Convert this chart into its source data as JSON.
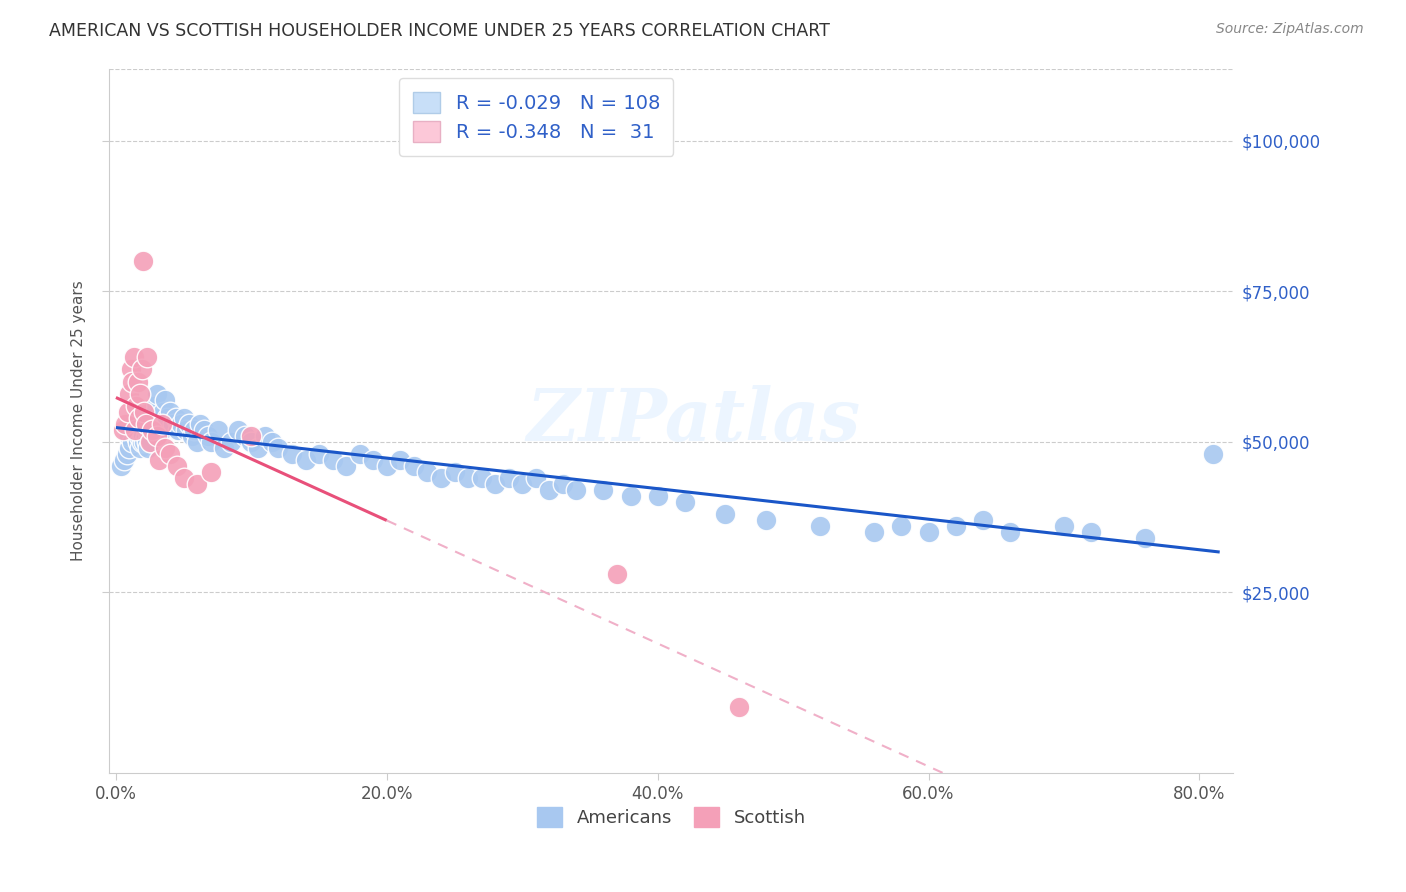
{
  "title": "AMERICAN VS SCOTTISH HOUSEHOLDER INCOME UNDER 25 YEARS CORRELATION CHART",
  "source": "Source: ZipAtlas.com",
  "ylabel": "Householder Income Under 25 years",
  "xlabel_ticks": [
    "0.0%",
    "",
    "",
    "",
    "",
    "20.0%",
    "",
    "",
    "",
    "",
    "40.0%",
    "",
    "",
    "",
    "",
    "60.0%",
    "",
    "",
    "",
    "",
    "80.0%"
  ],
  "xlabel_vals": [
    0.0,
    0.04,
    0.08,
    0.12,
    0.16,
    0.2,
    0.24,
    0.28,
    0.32,
    0.36,
    0.4,
    0.44,
    0.48,
    0.52,
    0.56,
    0.6,
    0.64,
    0.68,
    0.72,
    0.76,
    0.8
  ],
  "xlabel_shown": [
    "0.0%",
    "20.0%",
    "40.0%",
    "60.0%",
    "80.0%"
  ],
  "xlabel_shown_vals": [
    0.0,
    0.2,
    0.4,
    0.6,
    0.8
  ],
  "ylabel_ticks": [
    "$25,000",
    "$50,000",
    "$75,000",
    "$100,000"
  ],
  "ylabel_vals": [
    25000,
    50000,
    75000,
    100000
  ],
  "xlim": [
    -0.005,
    0.825
  ],
  "ylim": [
    -5000,
    112000
  ],
  "R_american": -0.029,
  "N_american": 108,
  "R_scottish": -0.348,
  "N_scottish": 31,
  "american_color": "#a8c8f0",
  "scottish_color": "#f4a0b8",
  "trend_american_color": "#1a56c8",
  "trend_scottish_color": "#e8507a",
  "trend_scottish_dashed_color": "#f0b0c8",
  "watermark": "ZIPatlas",
  "legend_box_color_american": "#c8dff8",
  "legend_box_color_scottish": "#fcc8d8",
  "legend_text_color": "#3060c8",
  "background_color": "#ffffff",
  "grid_color": "#cccccc",
  "spine_color": "#cccccc",
  "title_color": "#333333",
  "source_color": "#888888",
  "ylabel_color": "#555555",
  "tick_color": "#555555",
  "right_tick_color": "#3060c8",
  "americans_x": [
    0.004,
    0.006,
    0.008,
    0.01,
    0.01,
    0.012,
    0.013,
    0.014,
    0.015,
    0.015,
    0.016,
    0.016,
    0.017,
    0.017,
    0.018,
    0.018,
    0.019,
    0.019,
    0.02,
    0.02,
    0.021,
    0.021,
    0.022,
    0.022,
    0.022,
    0.023,
    0.023,
    0.024,
    0.024,
    0.025,
    0.025,
    0.026,
    0.026,
    0.027,
    0.028,
    0.028,
    0.03,
    0.03,
    0.032,
    0.033,
    0.034,
    0.035,
    0.036,
    0.038,
    0.04,
    0.042,
    0.044,
    0.046,
    0.048,
    0.05,
    0.052,
    0.054,
    0.056,
    0.058,
    0.06,
    0.062,
    0.065,
    0.068,
    0.07,
    0.075,
    0.08,
    0.085,
    0.09,
    0.095,
    0.1,
    0.105,
    0.11,
    0.115,
    0.12,
    0.13,
    0.14,
    0.15,
    0.16,
    0.17,
    0.18,
    0.19,
    0.2,
    0.21,
    0.22,
    0.23,
    0.24,
    0.25,
    0.26,
    0.27,
    0.28,
    0.29,
    0.3,
    0.31,
    0.32,
    0.33,
    0.34,
    0.36,
    0.38,
    0.4,
    0.42,
    0.45,
    0.48,
    0.52,
    0.56,
    0.58,
    0.6,
    0.62,
    0.64,
    0.66,
    0.7,
    0.72,
    0.76,
    0.81
  ],
  "americans_y": [
    46000,
    47000,
    48000,
    49000,
    51000,
    50000,
    53000,
    52000,
    51000,
    54000,
    52000,
    50000,
    51000,
    53000,
    49000,
    52000,
    50000,
    53000,
    51000,
    53000,
    50000,
    54000,
    52000,
    51000,
    53000,
    50000,
    52000,
    49000,
    53000,
    51000,
    55000,
    50000,
    52000,
    54000,
    53000,
    56000,
    52000,
    58000,
    54000,
    53000,
    52000,
    55000,
    57000,
    54000,
    55000,
    53000,
    54000,
    52000,
    53000,
    54000,
    52000,
    53000,
    51000,
    52000,
    50000,
    53000,
    52000,
    51000,
    50000,
    52000,
    49000,
    50000,
    52000,
    51000,
    50000,
    49000,
    51000,
    50000,
    49000,
    48000,
    47000,
    48000,
    47000,
    46000,
    48000,
    47000,
    46000,
    47000,
    46000,
    45000,
    44000,
    45000,
    44000,
    44000,
    43000,
    44000,
    43000,
    44000,
    42000,
    43000,
    42000,
    42000,
    41000,
    41000,
    40000,
    38000,
    37000,
    36000,
    35000,
    36000,
    35000,
    36000,
    37000,
    35000,
    36000,
    35000,
    34000,
    48000
  ],
  "scottish_x": [
    0.005,
    0.007,
    0.009,
    0.01,
    0.011,
    0.012,
    0.013,
    0.014,
    0.015,
    0.016,
    0.017,
    0.018,
    0.019,
    0.02,
    0.021,
    0.022,
    0.023,
    0.025,
    0.027,
    0.03,
    0.032,
    0.034,
    0.036,
    0.04,
    0.045,
    0.05,
    0.06,
    0.07,
    0.1,
    0.37,
    0.46
  ],
  "scottish_y": [
    52000,
    53000,
    55000,
    58000,
    62000,
    60000,
    64000,
    52000,
    56000,
    60000,
    54000,
    58000,
    62000,
    80000,
    55000,
    53000,
    64000,
    50000,
    52000,
    51000,
    47000,
    53000,
    49000,
    48000,
    46000,
    44000,
    43000,
    45000,
    51000,
    28000,
    6000
  ]
}
